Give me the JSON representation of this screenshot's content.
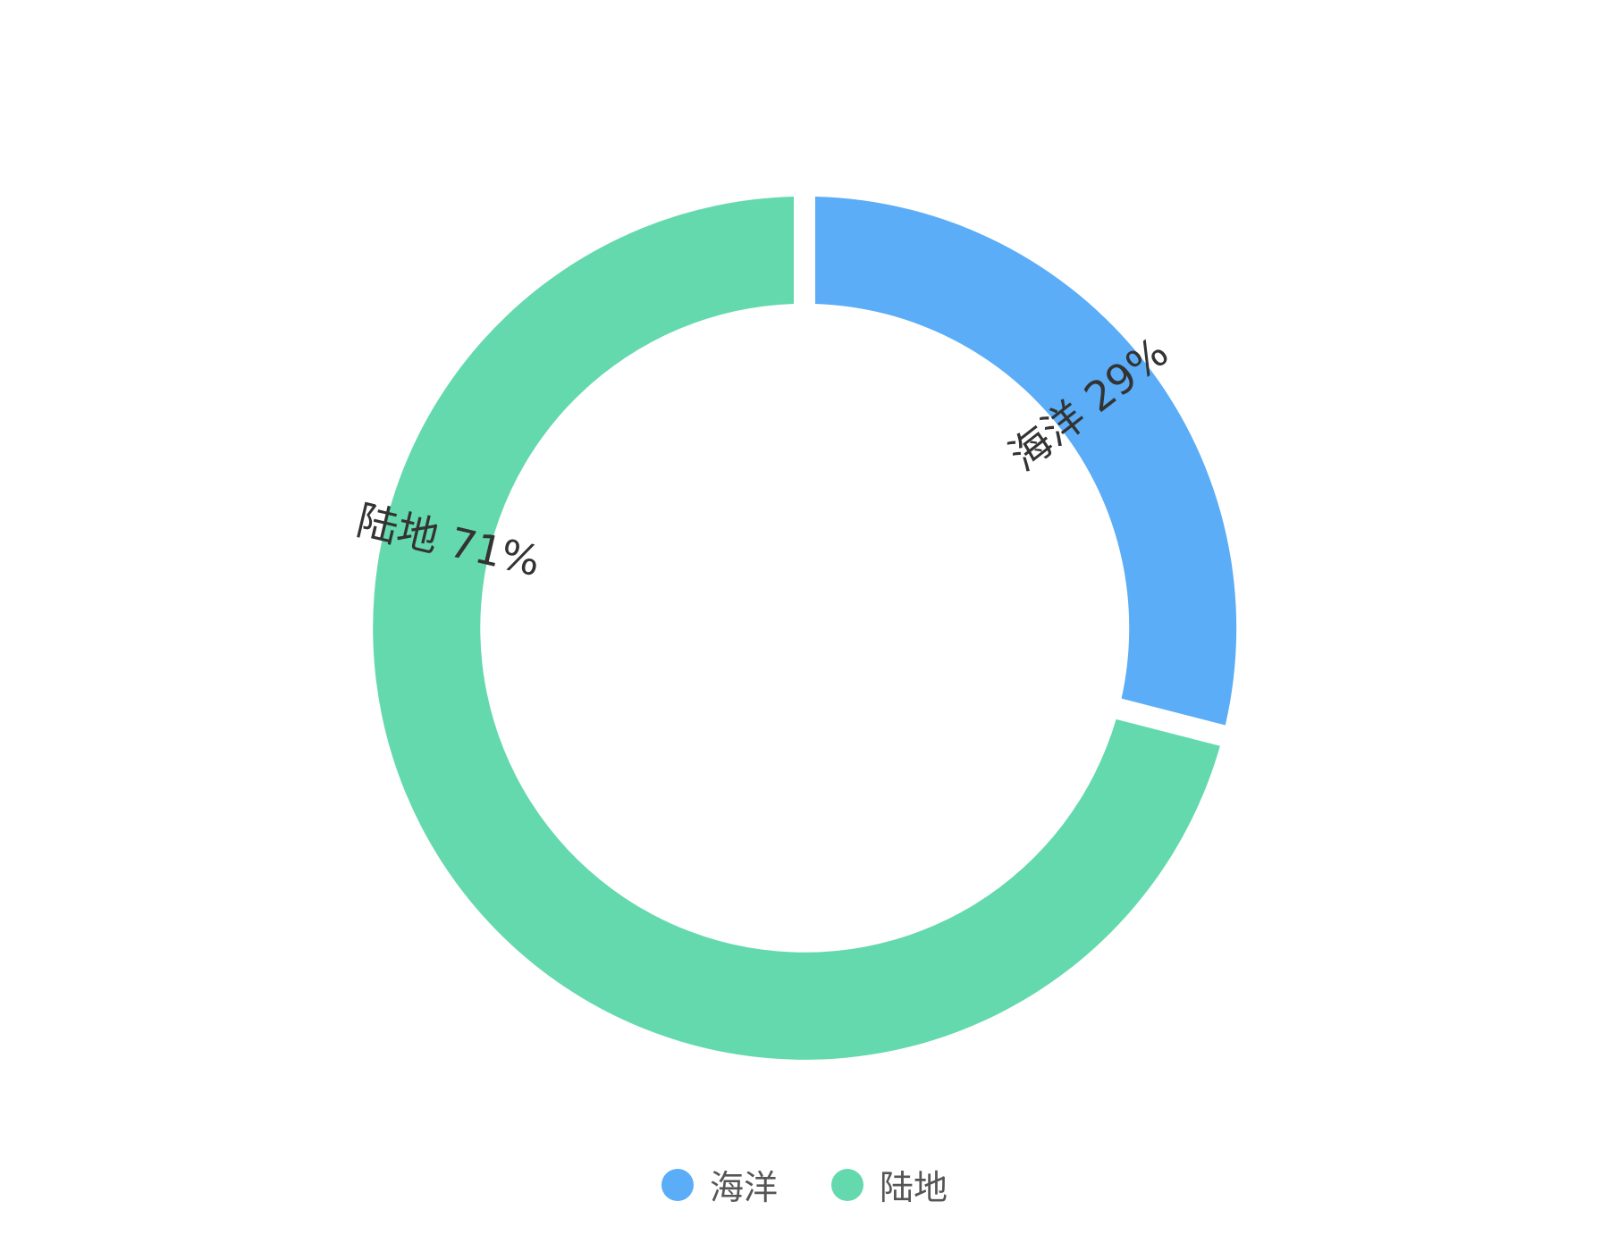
{
  "chart_data": {
    "type": "pie",
    "title": "",
    "series": [
      {
        "name": "",
        "categories": [
          "海洋",
          "陆地"
        ],
        "values": [
          29,
          71
        ],
        "labels": [
          "海洋 29%",
          "陆地 71%"
        ],
        "colors": [
          "#5aadf6",
          "#64d9ad"
        ]
      }
    ],
    "legend": {
      "position": "bottom-center",
      "items": [
        {
          "label": "海洋",
          "color": "#5aadf6"
        },
        {
          "label": "陆地",
          "color": "#64d9ad"
        }
      ]
    },
    "start_angle_deg": 0,
    "direction": "clockwise",
    "donut": true
  }
}
